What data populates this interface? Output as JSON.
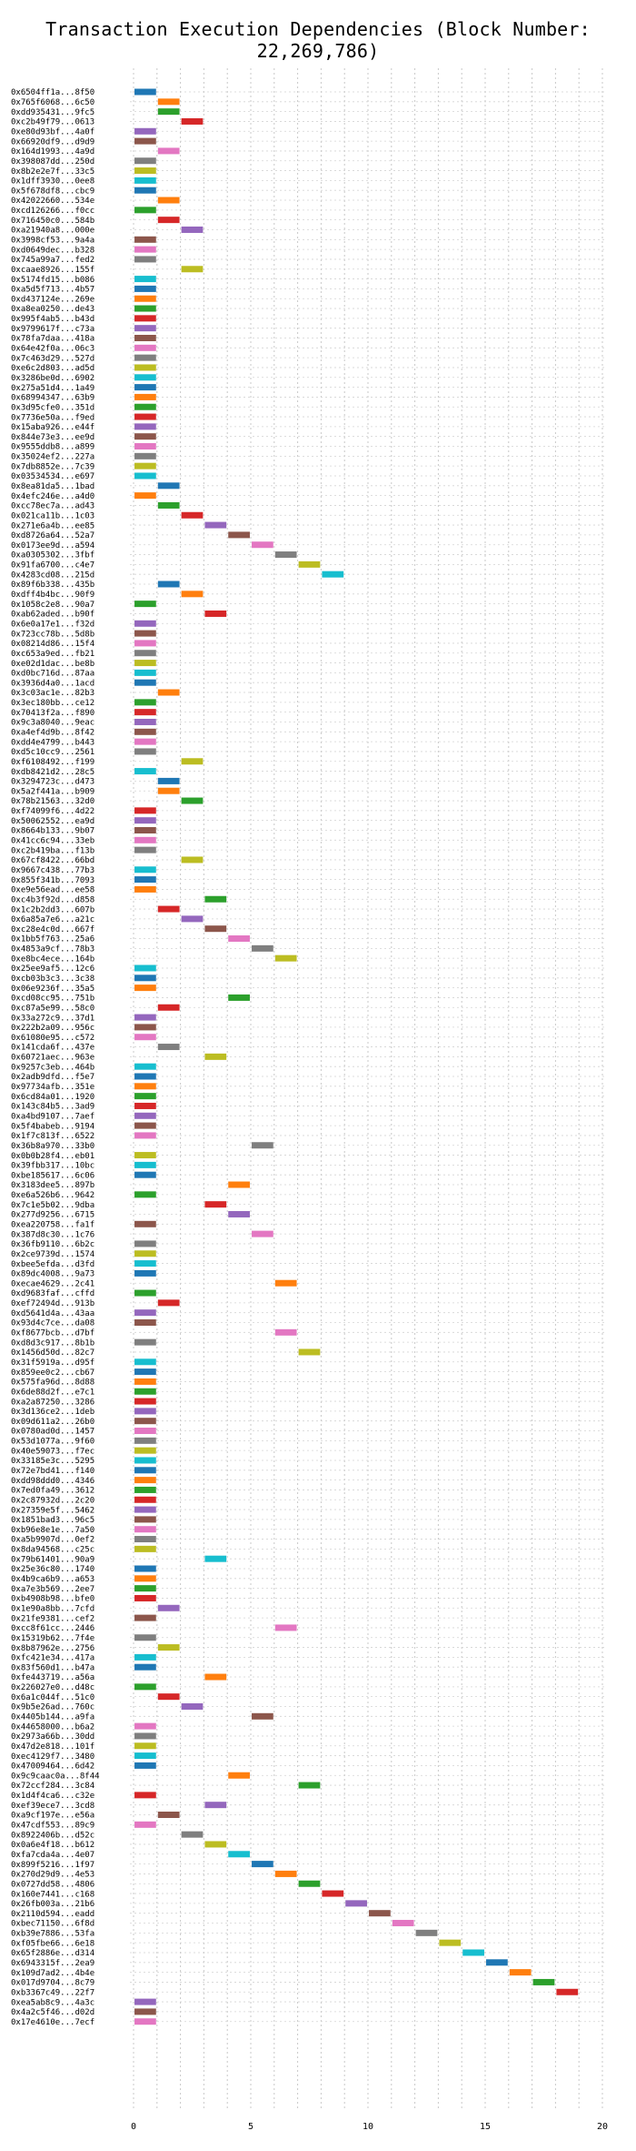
{
  "title": "Transaction Execution Dependencies (Block Number: 22,269,786)",
  "palette": [
    "#1f77b4",
    "#ff7f0e",
    "#2ca02c",
    "#d62728",
    "#9467bd",
    "#8c564b",
    "#e377c2",
    "#7f7f7f",
    "#bcbd22",
    "#17becf"
  ],
  "chart_data": {
    "type": "bar",
    "orientation": "horizontal-gantt",
    "title": "Transaction Execution Dependencies (Block Number: 22,269,786)",
    "xlabel": "",
    "ylabel": "",
    "xlim": [
      0,
      20
    ],
    "xticks": [
      0,
      5,
      10,
      15,
      20
    ],
    "grid": true,
    "bar_length": 1,
    "transactions": [
      {
        "label": "0x6504ff1a...8f50",
        "start": 0
      },
      {
        "label": "0x765f6068...6c50",
        "start": 1
      },
      {
        "label": "0xdd935431...9fc5",
        "start": 1
      },
      {
        "label": "0xc2b49f79...0613",
        "start": 2
      },
      {
        "label": "0xe80d93bf...4a0f",
        "start": 0
      },
      {
        "label": "0x66920df9...d9d9",
        "start": 0
      },
      {
        "label": "0x164d1993...4a9d",
        "start": 1
      },
      {
        "label": "0x398087dd...250d",
        "start": 0
      },
      {
        "label": "0x8b2e2e7f...33c5",
        "start": 0
      },
      {
        "label": "0x1dff3930...0ee8",
        "start": 0
      },
      {
        "label": "0x5f678df8...cbc9",
        "start": 0
      },
      {
        "label": "0x42022660...534e",
        "start": 1
      },
      {
        "label": "0xcd126266...f0cc",
        "start": 0
      },
      {
        "label": "0x716450c0...584b",
        "start": 1
      },
      {
        "label": "0xa21940a8...000e",
        "start": 2
      },
      {
        "label": "0x3998cf53...9a4a",
        "start": 0
      },
      {
        "label": "0xd0649dec...b328",
        "start": 0
      },
      {
        "label": "0x745a99a7...fed2",
        "start": 0
      },
      {
        "label": "0xcaae8926...155f",
        "start": 2
      },
      {
        "label": "0x5174fd15...b086",
        "start": 0
      },
      {
        "label": "0xa5d5f713...4b57",
        "start": 0
      },
      {
        "label": "0xd437124e...269e",
        "start": 0
      },
      {
        "label": "0xa8ea0250...de43",
        "start": 0
      },
      {
        "label": "0x995f4ab5...b43d",
        "start": 0
      },
      {
        "label": "0x9799617f...c73a",
        "start": 0
      },
      {
        "label": "0x78fa7daa...418a",
        "start": 0
      },
      {
        "label": "0x64e42f0a...06c3",
        "start": 0
      },
      {
        "label": "0x7c463d29...527d",
        "start": 0
      },
      {
        "label": "0xe6c2d803...ad5d",
        "start": 0
      },
      {
        "label": "0x3286be0d...6902",
        "start": 0
      },
      {
        "label": "0x275a51d4...1a49",
        "start": 0
      },
      {
        "label": "0x68994347...63b9",
        "start": 0
      },
      {
        "label": "0x3d95cfe0...351d",
        "start": 0
      },
      {
        "label": "0x7736e50a...f9ed",
        "start": 0
      },
      {
        "label": "0x15aba926...e44f",
        "start": 0
      },
      {
        "label": "0x844e73e3...ee9d",
        "start": 0
      },
      {
        "label": "0x9555ddb8...a899",
        "start": 0
      },
      {
        "label": "0x35024ef2...227a",
        "start": 0
      },
      {
        "label": "0x7db8852e...7c39",
        "start": 0
      },
      {
        "label": "0x03534534...e697",
        "start": 0
      },
      {
        "label": "0x8ea81da5...1bad",
        "start": 1
      },
      {
        "label": "0x4efc246e...a4d0",
        "start": 0
      },
      {
        "label": "0xcc78ec7a...ad43",
        "start": 1
      },
      {
        "label": "0x021ca11b...1c03",
        "start": 2
      },
      {
        "label": "0x271e6a4b...ee85",
        "start": 3
      },
      {
        "label": "0xd8726a64...52a7",
        "start": 4
      },
      {
        "label": "0x0173ee9d...a594",
        "start": 5
      },
      {
        "label": "0xa0305302...3fbf",
        "start": 6
      },
      {
        "label": "0x91fa6700...c4e7",
        "start": 7
      },
      {
        "label": "0x4283cd08...215d",
        "start": 8
      },
      {
        "label": "0x89f6b338...435b",
        "start": 1
      },
      {
        "label": "0xdff4b4bc...90f9",
        "start": 2
      },
      {
        "label": "0x1058c2e8...90a7",
        "start": 0
      },
      {
        "label": "0xab62aded...b90f",
        "start": 3
      },
      {
        "label": "0x6e0a17e1...f32d",
        "start": 0
      },
      {
        "label": "0x723cc78b...5d8b",
        "start": 0
      },
      {
        "label": "0x08214d86...15f4",
        "start": 0
      },
      {
        "label": "0xc653a9ed...fb21",
        "start": 0
      },
      {
        "label": "0xe02d1dac...be8b",
        "start": 0
      },
      {
        "label": "0xd0bc716d...87aa",
        "start": 0
      },
      {
        "label": "0x3936d4a0...1acd",
        "start": 0
      },
      {
        "label": "0x3c03ac1e...82b3",
        "start": 1
      },
      {
        "label": "0x3ec180bb...ce12",
        "start": 0
      },
      {
        "label": "0x70413f2a...f890",
        "start": 0
      },
      {
        "label": "0x9c3a8040...9eac",
        "start": 0
      },
      {
        "label": "0xa4ef4d9b...8f42",
        "start": 0
      },
      {
        "label": "0xdd4e4799...b443",
        "start": 0
      },
      {
        "label": "0xd5c10cc9...2561",
        "start": 0
      },
      {
        "label": "0xf6108492...f199",
        "start": 2
      },
      {
        "label": "0xdb8421d2...28c5",
        "start": 0
      },
      {
        "label": "0x3294723c...d473",
        "start": 1
      },
      {
        "label": "0x5a2f441a...b909",
        "start": 1
      },
      {
        "label": "0x78b21563...32d0",
        "start": 2
      },
      {
        "label": "0xf74099f6...4d22",
        "start": 0
      },
      {
        "label": "0x50062552...ea9d",
        "start": 0
      },
      {
        "label": "0x8664b133...9b07",
        "start": 0
      },
      {
        "label": "0x41cc6c94...33eb",
        "start": 0
      },
      {
        "label": "0xc2b419ba...f13b",
        "start": 0
      },
      {
        "label": "0x67cf8422...66bd",
        "start": 2
      },
      {
        "label": "0x9667c438...77b3",
        "start": 0
      },
      {
        "label": "0x855f341b...7093",
        "start": 0
      },
      {
        "label": "0xe9e56ead...ee58",
        "start": 0
      },
      {
        "label": "0xc4b3f92d...d858",
        "start": 3
      },
      {
        "label": "0x1c2b2dd3...607b",
        "start": 1
      },
      {
        "label": "0x6a85a7e6...a21c",
        "start": 2
      },
      {
        "label": "0xc28e4c0d...667f",
        "start": 3
      },
      {
        "label": "0x1bb5f763...25a6",
        "start": 4
      },
      {
        "label": "0x4853a9cf...78b3",
        "start": 5
      },
      {
        "label": "0xe8bc4ece...164b",
        "start": 6
      },
      {
        "label": "0x25ee9af5...12c6",
        "start": 0
      },
      {
        "label": "0xcb03b3c3...3c38",
        "start": 0
      },
      {
        "label": "0x06e9236f...35a5",
        "start": 0
      },
      {
        "label": "0xcd08cc95...751b",
        "start": 4
      },
      {
        "label": "0xc87a5e99...58c0",
        "start": 1
      },
      {
        "label": "0x33a272c9...37d1",
        "start": 0
      },
      {
        "label": "0x222b2a09...956c",
        "start": 0
      },
      {
        "label": "0x61080e95...c572",
        "start": 0
      },
      {
        "label": "0x141cda6f...437e",
        "start": 1
      },
      {
        "label": "0x60721aec...963e",
        "start": 3
      },
      {
        "label": "0x9257c3eb...464b",
        "start": 0
      },
      {
        "label": "0x2adb9dfd...f5e7",
        "start": 0
      },
      {
        "label": "0x97734afb...351e",
        "start": 0
      },
      {
        "label": "0x6cd84a01...1920",
        "start": 0
      },
      {
        "label": "0x143c84b5...3ad9",
        "start": 0
      },
      {
        "label": "0xa4bd9107...7aef",
        "start": 0
      },
      {
        "label": "0x5f4babeb...9194",
        "start": 0
      },
      {
        "label": "0x1f7c813f...6522",
        "start": 0
      },
      {
        "label": "0x36b8a970...33b0",
        "start": 5
      },
      {
        "label": "0x0b0b28f4...eb01",
        "start": 0
      },
      {
        "label": "0x39fbb317...10bc",
        "start": 0
      },
      {
        "label": "0xbe185617...6c06",
        "start": 0
      },
      {
        "label": "0x3183dee5...897b",
        "start": 4
      },
      {
        "label": "0xe6a526b6...9642",
        "start": 0
      },
      {
        "label": "0x7c1e5b02...9dba",
        "start": 3
      },
      {
        "label": "0x277d9256...6715",
        "start": 4
      },
      {
        "label": "0xea220758...fa1f",
        "start": 0
      },
      {
        "label": "0x387d8c30...1c76",
        "start": 5
      },
      {
        "label": "0x36fb9110...6b2c",
        "start": 0
      },
      {
        "label": "0x2ce9739d...1574",
        "start": 0
      },
      {
        "label": "0xbee5efda...d3fd",
        "start": 0
      },
      {
        "label": "0x89dc4008...9a73",
        "start": 0
      },
      {
        "label": "0xecae4629...2c41",
        "start": 6
      },
      {
        "label": "0xd9683faf...cffd",
        "start": 0
      },
      {
        "label": "0xef72494d...913b",
        "start": 1
      },
      {
        "label": "0xd5641d4a...43aa",
        "start": 0
      },
      {
        "label": "0x93d4c7ce...da08",
        "start": 0
      },
      {
        "label": "0xf8677bcb...d7bf",
        "start": 6
      },
      {
        "label": "0xd8d3c917...8b1b",
        "start": 0
      },
      {
        "label": "0x1456d50d...82c7",
        "start": 7
      },
      {
        "label": "0x31f5919a...d95f",
        "start": 0
      },
      {
        "label": "0x859ee0c2...cb67",
        "start": 0
      },
      {
        "label": "0x575fa96d...8d88",
        "start": 0
      },
      {
        "label": "0x6de88d2f...e7c1",
        "start": 0
      },
      {
        "label": "0xa2a87250...3286",
        "start": 0
      },
      {
        "label": "0x3d136ce2...1deb",
        "start": 0
      },
      {
        "label": "0x09d611a2...26b0",
        "start": 0
      },
      {
        "label": "0x0780ad0d...1457",
        "start": 0
      },
      {
        "label": "0x53d1077a...9f60",
        "start": 0
      },
      {
        "label": "0x40e59073...f7ec",
        "start": 0
      },
      {
        "label": "0x33185e3c...5295",
        "start": 0
      },
      {
        "label": "0x72e7bd41...f140",
        "start": 0
      },
      {
        "label": "0xdd98ddd0...4346",
        "start": 0
      },
      {
        "label": "0x7ed0fa49...3612",
        "start": 0
      },
      {
        "label": "0x2c87932d...2c20",
        "start": 0
      },
      {
        "label": "0x27359e5f...5462",
        "start": 0
      },
      {
        "label": "0x1851bad3...96c5",
        "start": 0
      },
      {
        "label": "0xb96e8e1e...7a50",
        "start": 0
      },
      {
        "label": "0xa5b9907d...0ef2",
        "start": 0
      },
      {
        "label": "0x8da94568...c25c",
        "start": 0
      },
      {
        "label": "0x79b61401...90a9",
        "start": 3
      },
      {
        "label": "0x25e36c80...1740",
        "start": 0
      },
      {
        "label": "0x4b9ca6b9...a653",
        "start": 0
      },
      {
        "label": "0xa7e3b569...2ee7",
        "start": 0
      },
      {
        "label": "0xb4908b98...bfe0",
        "start": 0
      },
      {
        "label": "0x1e90a8bb...7cfd",
        "start": 1
      },
      {
        "label": "0x21fe9381...cef2",
        "start": 0
      },
      {
        "label": "0xcc8f61cc...2446",
        "start": 6
      },
      {
        "label": "0x15319b62...7f4e",
        "start": 0
      },
      {
        "label": "0x8b87962e...2756",
        "start": 1
      },
      {
        "label": "0xfc421e34...417a",
        "start": 0
      },
      {
        "label": "0x83f560d1...b47a",
        "start": 0
      },
      {
        "label": "0xfe443719...a56a",
        "start": 3
      },
      {
        "label": "0x226027e0...d48c",
        "start": 0
      },
      {
        "label": "0x6a1c044f...51c0",
        "start": 1
      },
      {
        "label": "0x9b5e26ad...760c",
        "start": 2
      },
      {
        "label": "0x4405b144...a9fa",
        "start": 5
      },
      {
        "label": "0x44658000...b6a2",
        "start": 0
      },
      {
        "label": "0x2973a66b...30dd",
        "start": 0
      },
      {
        "label": "0x47d2e818...101f",
        "start": 0
      },
      {
        "label": "0xec4129f7...3480",
        "start": 0
      },
      {
        "label": "0x47009464...6d42",
        "start": 0
      },
      {
        "label": "0x9c9caac0a...8f44",
        "start": 4
      },
      {
        "label": "0x72ccf284...3c84",
        "start": 7
      },
      {
        "label": "0x1d4f4ca6...c32e",
        "start": 0
      },
      {
        "label": "0xef39ece7...3cd8",
        "start": 3
      },
      {
        "label": "0xa9cf197e...e56a",
        "start": 1
      },
      {
        "label": "0x47cdf553...89c9",
        "start": 0
      },
      {
        "label": "0x8922406b...d52c",
        "start": 2
      },
      {
        "label": "0x0a6e4f18...b612",
        "start": 3
      },
      {
        "label": "0xfa7cda4a...4e07",
        "start": 4
      },
      {
        "label": "0x899f5216...1f97",
        "start": 5
      },
      {
        "label": "0x270d29d9...4e53",
        "start": 6
      },
      {
        "label": "0x0727dd58...4806",
        "start": 7
      },
      {
        "label": "0x160e7441...c168",
        "start": 8
      },
      {
        "label": "0x26fb003a...21b6",
        "start": 9
      },
      {
        "label": "0x2110d594...eadd",
        "start": 10
      },
      {
        "label": "0xbec71150...6f8d",
        "start": 11
      },
      {
        "label": "0xb39e7886...53fa",
        "start": 12
      },
      {
        "label": "0xf05fbe66...6e18",
        "start": 13
      },
      {
        "label": "0x65f2886e...d314",
        "start": 14
      },
      {
        "label": "0x6943315f...2ea9",
        "start": 15
      },
      {
        "label": "0x109d7ad2...4b4e",
        "start": 16
      },
      {
        "label": "0x017d9704...8c79",
        "start": 17
      },
      {
        "label": "0xb3367c49...22f7",
        "start": 18
      },
      {
        "label": "0xea5ab8c9...4a3c",
        "start": 0
      },
      {
        "label": "0x4a2c5f46...d02d",
        "start": 0
      },
      {
        "label": "0x17e4610e...7ecf",
        "start": 0
      }
    ]
  }
}
